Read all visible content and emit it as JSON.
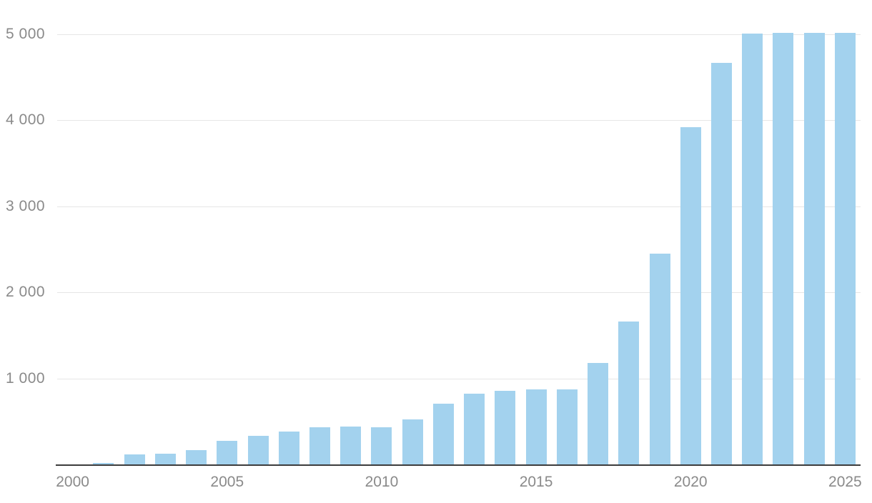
{
  "chart_data": {
    "type": "bar",
    "x": [
      2000,
      2001,
      2002,
      2003,
      2004,
      2005,
      2006,
      2007,
      2008,
      2009,
      2010,
      2011,
      2012,
      2013,
      2014,
      2015,
      2016,
      2017,
      2018,
      2019,
      2020,
      2021,
      2022,
      2023,
      2024,
      2025
    ],
    "values": [
      0,
      15,
      115,
      125,
      165,
      275,
      330,
      380,
      430,
      440,
      430,
      520,
      705,
      820,
      855,
      870,
      870,
      1180,
      1660,
      2450,
      3920,
      4665,
      5005,
      5020,
      5020,
      5020
    ],
    "title": "",
    "xlabel": "",
    "ylabel": "",
    "ylim": [
      0,
      5300
    ],
    "y_ticks": [
      1000,
      2000,
      3000,
      4000,
      5000
    ],
    "y_tick_labels": [
      "1 000",
      "2 000",
      "3 000",
      "4 000",
      "5 000"
    ],
    "x_tick_labels": [
      "2000",
      "2005",
      "2010",
      "2015",
      "2020",
      "2025"
    ],
    "bar_color": "#a3d2ee",
    "grid": true,
    "legend_position": "none"
  }
}
